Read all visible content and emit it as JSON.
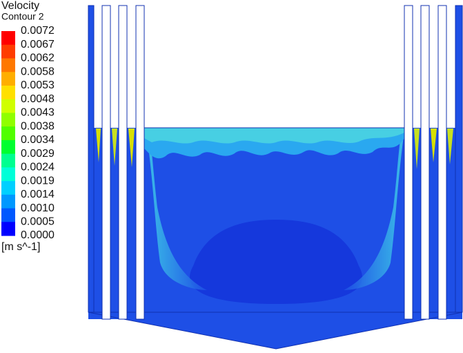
{
  "legend": {
    "title": "Velocity",
    "subtitle": "Contour 2",
    "labels": [
      "0.0072",
      "0.0067",
      "0.0062",
      "0.0058",
      "0.0053",
      "0.0048",
      "0.0043",
      "0.0038",
      "0.0034",
      "0.0029",
      "0.0024",
      "0.0019",
      "0.0014",
      "0.0010",
      "0.0005",
      "0.0000"
    ],
    "unit": "[m s^-1]"
  }
}
